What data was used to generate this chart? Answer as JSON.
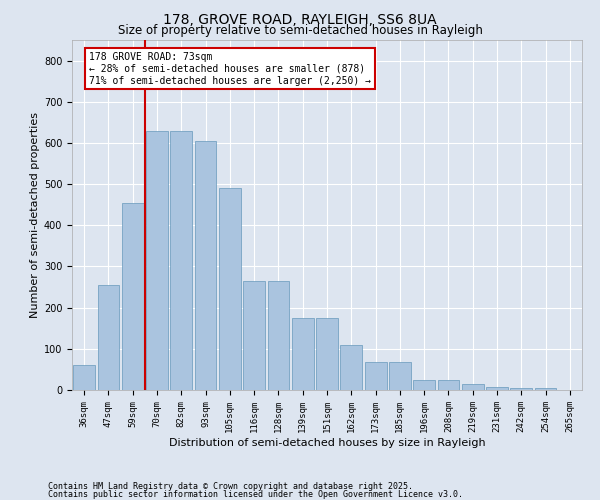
{
  "title1": "178, GROVE ROAD, RAYLEIGH, SS6 8UA",
  "title2": "Size of property relative to semi-detached houses in Rayleigh",
  "xlabel": "Distribution of semi-detached houses by size in Rayleigh",
  "ylabel": "Number of semi-detached properties",
  "categories": [
    "36sqm",
    "47sqm",
    "59sqm",
    "70sqm",
    "82sqm",
    "93sqm",
    "105sqm",
    "116sqm",
    "128sqm",
    "139sqm",
    "151sqm",
    "162sqm",
    "173sqm",
    "185sqm",
    "196sqm",
    "208sqm",
    "219sqm",
    "231sqm",
    "242sqm",
    "254sqm",
    "265sqm"
  ],
  "values": [
    60,
    255,
    455,
    630,
    630,
    605,
    490,
    265,
    265,
    175,
    175,
    110,
    68,
    68,
    25,
    25,
    14,
    8,
    5,
    5,
    0
  ],
  "bar_color": "#aac4df",
  "bar_edge_color": "#6699bb",
  "vline_x": 2.5,
  "annotation_title": "178 GROVE ROAD: 73sqm",
  "annotation_line1": "← 28% of semi-detached houses are smaller (878)",
  "annotation_line2": "71% of semi-detached houses are larger (2,250) →",
  "annotation_box_facecolor": "#ffffff",
  "annotation_box_edgecolor": "#cc0000",
  "vline_color": "#cc0000",
  "footnote1": "Contains HM Land Registry data © Crown copyright and database right 2025.",
  "footnote2": "Contains public sector information licensed under the Open Government Licence v3.0.",
  "ylim": [
    0,
    850
  ],
  "yticks": [
    0,
    100,
    200,
    300,
    400,
    500,
    600,
    700,
    800
  ],
  "background_color": "#dde5f0",
  "plot_background": "#dde5f0",
  "grid_color": "#ffffff",
  "title_fontsize": 10,
  "subtitle_fontsize": 8.5,
  "tick_fontsize": 6.5,
  "axis_label_fontsize": 8,
  "annotation_fontsize": 7
}
